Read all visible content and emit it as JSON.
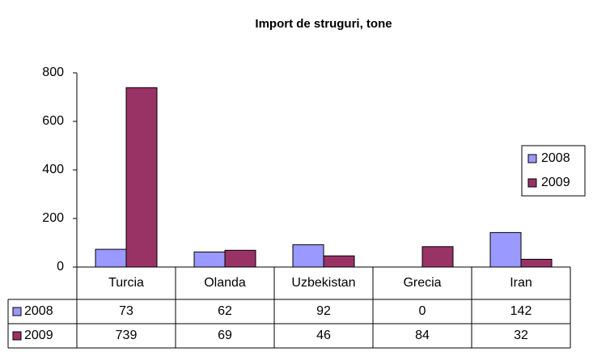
{
  "chart_data": {
    "type": "bar",
    "title": "Import de struguri, tone",
    "categories": [
      "Turcia",
      "Olanda",
      "Uzbekistan",
      "Grecia",
      "Iran"
    ],
    "series": [
      {
        "name": "2008",
        "color": "#9999ff",
        "values": [
          73,
          62,
          92,
          0,
          142
        ]
      },
      {
        "name": "2009",
        "color": "#993366",
        "values": [
          739,
          69,
          46,
          84,
          32
        ]
      }
    ],
    "ylim": [
      0,
      800
    ],
    "yticks": [
      0,
      200,
      400,
      600,
      800
    ],
    "grid": false,
    "legend": "right"
  }
}
